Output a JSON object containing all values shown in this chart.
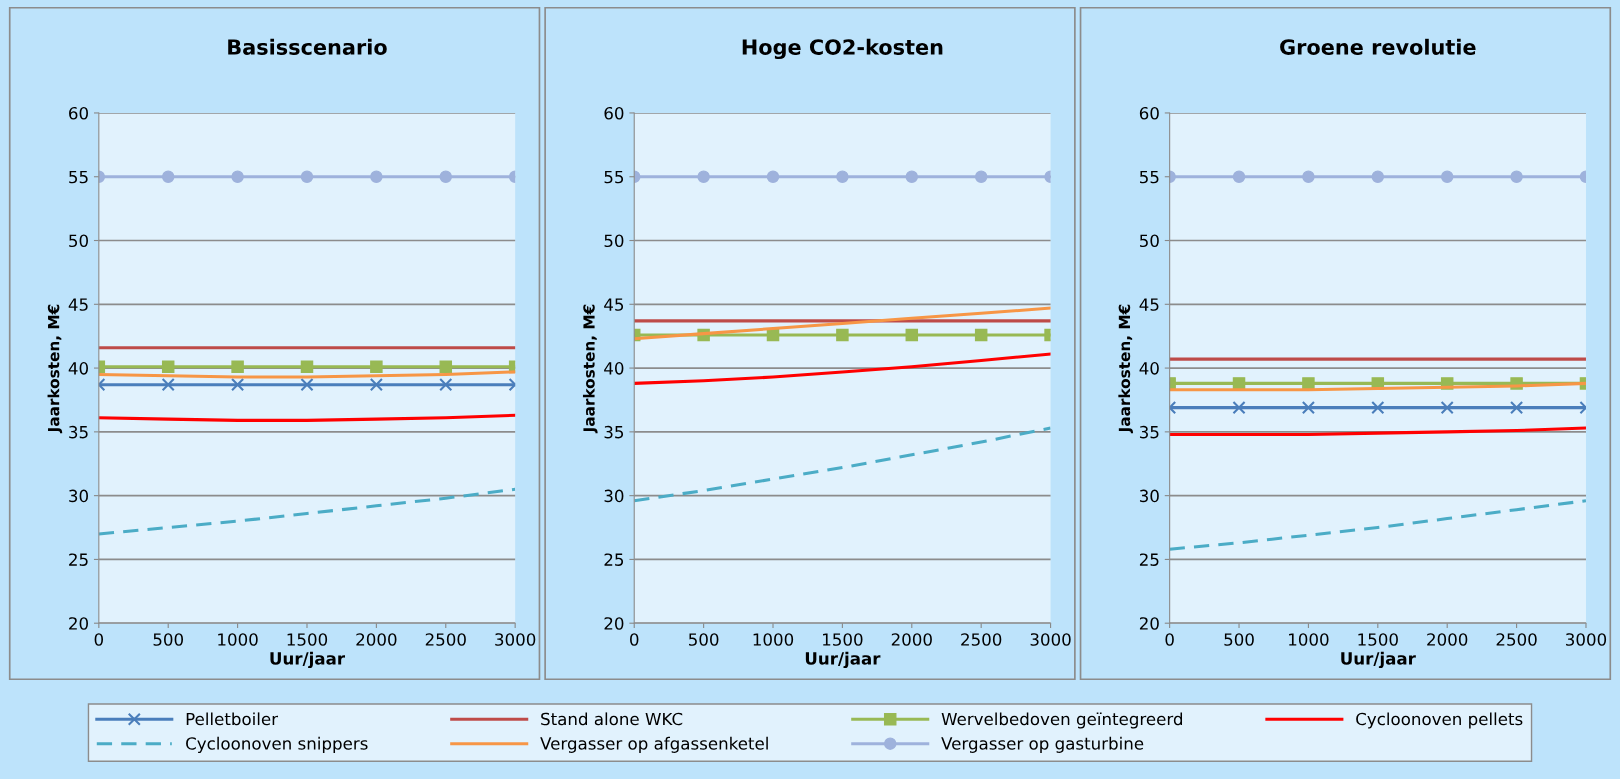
{
  "chart_data": [
    {
      "type": "line",
      "title": "Basisscenario",
      "xlabel": "Uur/jaar",
      "ylabel": "Jaarkosten, M€",
      "x": [
        0,
        500,
        1000,
        1500,
        2000,
        2500,
        3000
      ],
      "xlim": [
        0,
        3000
      ],
      "xticks": [
        0,
        500,
        1000,
        1500,
        2000,
        2500,
        3000
      ],
      "ylim": [
        20,
        60
      ],
      "yticks": [
        20,
        25,
        30,
        35,
        40,
        45,
        50,
        55,
        60
      ],
      "grid": "y",
      "legend": "bottom",
      "series": [
        {
          "name": "Pelletboiler",
          "color": "#4a7ebb",
          "marker": "cross",
          "values": [
            38.7,
            38.7,
            38.7,
            38.7,
            38.7,
            38.7,
            38.7
          ]
        },
        {
          "name": "Stand alone WKC",
          "color": "#be4b48",
          "values": [
            41.6,
            41.6,
            41.6,
            41.6,
            41.6,
            41.6,
            41.6
          ]
        },
        {
          "name": "Wervelbedoven geïntegreerd",
          "color": "#98b954",
          "marker": "square",
          "values": [
            40.1,
            40.1,
            40.1,
            40.1,
            40.1,
            40.1,
            40.1
          ]
        },
        {
          "name": "Cycloonoven pellets",
          "color": "#ff0000",
          "values": [
            36.1,
            36.0,
            35.9,
            35.9,
            36.0,
            36.1,
            36.3
          ]
        },
        {
          "name": "Cycloonoven snippers",
          "color": "#4bacc6",
          "line_style": "dashed",
          "values": [
            27.0,
            27.5,
            28.0,
            28.6,
            29.2,
            29.8,
            30.5
          ]
        },
        {
          "name": "Vergasser op afgassenketel",
          "color": "#f79646",
          "values": [
            39.5,
            39.4,
            39.3,
            39.3,
            39.4,
            39.5,
            39.7
          ]
        },
        {
          "name": "Vergasser op gasturbine",
          "color": "#9eb2dc",
          "marker": "circle",
          "values": [
            55,
            55,
            55,
            55,
            55,
            55,
            55
          ]
        }
      ]
    },
    {
      "type": "line",
      "title": "Hoge CO2-kosten",
      "xlabel": "Uur/jaar",
      "ylabel": "Jaarkosten, M€",
      "x": [
        0,
        500,
        1000,
        1500,
        2000,
        2500,
        3000
      ],
      "xlim": [
        0,
        3000
      ],
      "xticks": [
        0,
        500,
        1000,
        1500,
        2000,
        2500,
        3000
      ],
      "ylim": [
        20,
        60
      ],
      "yticks": [
        20,
        25,
        30,
        35,
        40,
        45,
        50,
        55,
        60
      ],
      "grid": "y",
      "series": [
        {
          "color": "#be4b48",
          "values": [
            43.7,
            43.7,
            43.7,
            43.7,
            43.7,
            43.7,
            43.7
          ]
        },
        {
          "color": "#98b954",
          "marker": "square",
          "values": [
            42.6,
            42.6,
            42.6,
            42.6,
            42.6,
            42.6,
            42.6
          ]
        },
        {
          "color": "#ff0000",
          "values": [
            38.8,
            39.0,
            39.3,
            39.7,
            40.1,
            40.6,
            41.1
          ]
        },
        {
          "color": "#4bacc6",
          "line_style": "dashed",
          "values": [
            29.6,
            30.4,
            31.3,
            32.2,
            33.2,
            34.2,
            35.3
          ]
        },
        {
          "color": "#f79646",
          "values": [
            42.3,
            42.7,
            43.1,
            43.5,
            43.9,
            44.3,
            44.7
          ]
        },
        {
          "color": "#9eb2dc",
          "marker": "circle",
          "values": [
            55,
            55,
            55,
            55,
            55,
            55,
            55
          ]
        }
      ]
    },
    {
      "type": "line",
      "title": "Groene revolutie",
      "xlabel": "Uur/jaar",
      "ylabel": "Jaarkosten, M€",
      "x": [
        0,
        500,
        1000,
        1500,
        2000,
        2500,
        3000
      ],
      "xlim": [
        0,
        3000
      ],
      "xticks": [
        0,
        500,
        1000,
        1500,
        2000,
        2500,
        3000
      ],
      "ylim": [
        20,
        60
      ],
      "yticks": [
        20,
        25,
        30,
        35,
        40,
        45,
        50,
        55,
        60
      ],
      "grid": "y",
      "series": [
        {
          "color": "#4a7ebb",
          "marker": "cross",
          "values": [
            36.9,
            36.9,
            36.9,
            36.9,
            36.9,
            36.9,
            36.9
          ]
        },
        {
          "color": "#be4b48",
          "values": [
            40.7,
            40.7,
            40.7,
            40.7,
            40.7,
            40.7,
            40.7
          ]
        },
        {
          "color": "#98b954",
          "marker": "square",
          "values": [
            38.8,
            38.8,
            38.8,
            38.8,
            38.8,
            38.8,
            38.8
          ]
        },
        {
          "color": "#ff0000",
          "values": [
            34.8,
            34.8,
            34.8,
            34.9,
            35.0,
            35.1,
            35.3
          ]
        },
        {
          "color": "#4bacc6",
          "line_style": "dashed",
          "values": [
            25.8,
            26.3,
            26.9,
            27.5,
            28.2,
            28.9,
            29.6
          ]
        },
        {
          "color": "#f79646",
          "values": [
            38.3,
            38.3,
            38.3,
            38.4,
            38.5,
            38.6,
            38.8
          ]
        },
        {
          "color": "#9eb2dc",
          "marker": "circle",
          "values": [
            55,
            55,
            55,
            55,
            55,
            55,
            55
          ]
        }
      ]
    }
  ]
}
